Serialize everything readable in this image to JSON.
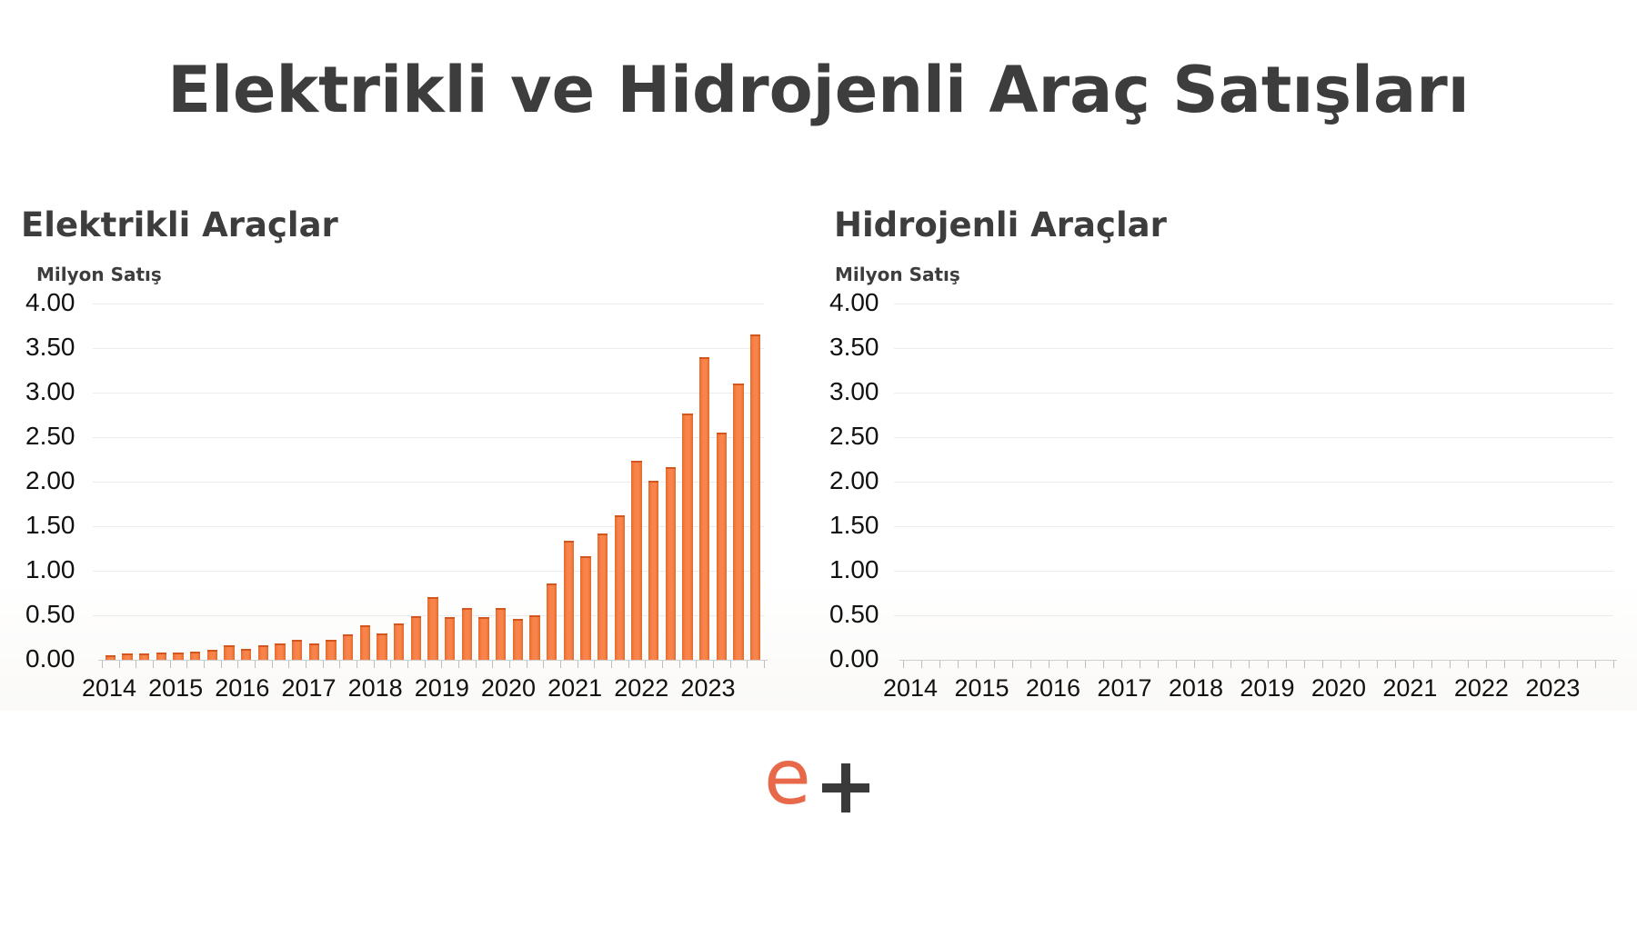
{
  "title": "Elektrikli ve Hidrojenli Araç Satışları",
  "logo": {
    "letter": "e",
    "symbol": "+",
    "letter_color": "#e8694a",
    "symbol_color": "#3a3a3a"
  },
  "colors": {
    "bar": "#f8844c",
    "bar_edge": "#e06a2c",
    "title": "#3d3d3d"
  },
  "panels": [
    {
      "title": "Elektrikli Araçlar",
      "unit": "Milyon Satış"
    },
    {
      "title": "Hidrojenli Araçlar",
      "unit": "Milyon Satış"
    }
  ],
  "y_ticks": [
    "4.00",
    "3.50",
    "3.00",
    "2.50",
    "2.00",
    "1.50",
    "1.00",
    "0.50",
    "0.00"
  ],
  "x_ticks": [
    "2014",
    "2015",
    "2016",
    "2017",
    "2018",
    "2019",
    "2020",
    "2021",
    "2022",
    "2023"
  ],
  "chart_data": [
    {
      "type": "bar",
      "title": "Elektrikli Araçlar",
      "ylabel": "Milyon Satış",
      "xlabel": "",
      "ylim": [
        0,
        4
      ],
      "yticks": [
        0,
        0.5,
        1.0,
        1.5,
        2.0,
        2.5,
        3.0,
        3.5,
        4.0
      ],
      "grid": true,
      "x_tick_labels": [
        "2014",
        "2015",
        "2016",
        "2017",
        "2018",
        "2019",
        "2020",
        "2021",
        "2022",
        "2023"
      ],
      "values": [
        0.05,
        0.07,
        0.07,
        0.08,
        0.08,
        0.09,
        0.11,
        0.16,
        0.12,
        0.16,
        0.18,
        0.22,
        0.18,
        0.22,
        0.29,
        0.39,
        0.3,
        0.41,
        0.49,
        0.7,
        0.48,
        0.58,
        0.48,
        0.58,
        0.46,
        0.5,
        0.86,
        1.34,
        1.16,
        1.42,
        1.62,
        2.23,
        2.01,
        2.16,
        2.77,
        3.4,
        2.55,
        3.1,
        3.65
      ]
    },
    {
      "type": "bar",
      "title": "Hidrojenli Araçlar",
      "ylabel": "Milyon Satış",
      "xlabel": "",
      "ylim": [
        0,
        4
      ],
      "yticks": [
        0,
        0.5,
        1.0,
        1.5,
        2.0,
        2.5,
        3.0,
        3.5,
        4.0
      ],
      "grid": true,
      "x_tick_labels": [
        "2014",
        "2015",
        "2016",
        "2017",
        "2018",
        "2019",
        "2020",
        "2021",
        "2022",
        "2023"
      ],
      "values": [
        0,
        0,
        0,
        0,
        0,
        0,
        0,
        0,
        0,
        0,
        0,
        0,
        0,
        0,
        0,
        0,
        0,
        0,
        0,
        0,
        0,
        0,
        0,
        0,
        0,
        0,
        0,
        0,
        0,
        0,
        0,
        0,
        0,
        0,
        0,
        0,
        0,
        0,
        0
      ]
    }
  ]
}
